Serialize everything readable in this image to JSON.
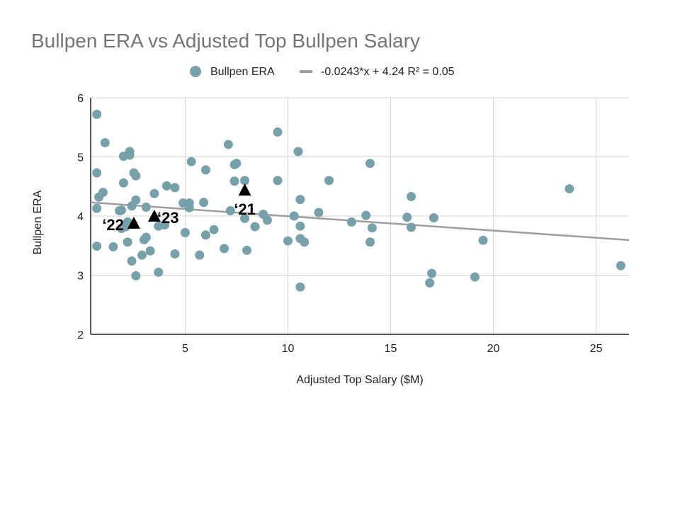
{
  "chart_data": {
    "type": "scatter",
    "title": "Bullpen ERA vs Adjusted Top Bullpen Salary",
    "xlabel": "Adjusted Top Salary ($M)",
    "ylabel": "Bullpen ERA",
    "xlim": [
      0.4,
      26.6
    ],
    "ylim": [
      2,
      6
    ],
    "xticks": [
      5,
      10,
      15,
      20,
      25
    ],
    "yticks": [
      2,
      3,
      4,
      5,
      6
    ],
    "grid": true,
    "legend_position": "top",
    "colors": {
      "point": "#77a1aa",
      "trend": "#9e9e9e",
      "grid": "#d4d4d4",
      "axis": "#222222",
      "marker": "#000000"
    },
    "legend": [
      {
        "label": "Bullpen ERA",
        "kind": "point"
      },
      {
        "label": "-0.0243*x + 4.24 R² = 0.05",
        "kind": "trendline"
      }
    ],
    "trendline": {
      "slope": -0.0243,
      "intercept": 4.24,
      "r2": 0.05
    },
    "points": [
      [
        0.7,
        5.72
      ],
      [
        1.1,
        5.24
      ],
      [
        0.7,
        4.73
      ],
      [
        1.0,
        4.4
      ],
      [
        0.8,
        4.32
      ],
      [
        0.7,
        4.13
      ],
      [
        0.7,
        3.49
      ],
      [
        1.5,
        3.48
      ],
      [
        1.9,
        4.1
      ],
      [
        1.8,
        4.09
      ],
      [
        2.0,
        4.56
      ],
      [
        2.0,
        5.01
      ],
      [
        2.3,
        5.09
      ],
      [
        2.3,
        5.03
      ],
      [
        2.5,
        4.73
      ],
      [
        2.6,
        4.68
      ],
      [
        2.6,
        4.27
      ],
      [
        2.4,
        4.17
      ],
      [
        2.1,
        3.82
      ],
      [
        2.2,
        3.9
      ],
      [
        1.9,
        3.79
      ],
      [
        2.2,
        3.56
      ],
      [
        2.4,
        3.24
      ],
      [
        2.6,
        2.99
      ],
      [
        2.9,
        3.34
      ],
      [
        3.0,
        3.6
      ],
      [
        3.1,
        4.15
      ],
      [
        3.1,
        3.64
      ],
      [
        3.3,
        3.41
      ],
      [
        3.5,
        4.38
      ],
      [
        3.7,
        3.83
      ],
      [
        3.7,
        3.05
      ],
      [
        4.0,
        3.85
      ],
      [
        4.1,
        4.51
      ],
      [
        4.5,
        4.48
      ],
      [
        4.5,
        3.36
      ],
      [
        4.9,
        4.22
      ],
      [
        5.0,
        3.72
      ],
      [
        5.2,
        4.22
      ],
      [
        5.2,
        4.14
      ],
      [
        5.3,
        4.92
      ],
      [
        5.7,
        3.34
      ],
      [
        5.9,
        4.23
      ],
      [
        6.0,
        4.78
      ],
      [
        6.0,
        3.68
      ],
      [
        6.4,
        3.77
      ],
      [
        6.9,
        3.45
      ],
      [
        7.1,
        5.21
      ],
      [
        7.2,
        4.09
      ],
      [
        7.4,
        4.87
      ],
      [
        7.5,
        4.89
      ],
      [
        7.4,
        4.59
      ],
      [
        7.9,
        4.6
      ],
      [
        7.9,
        3.96
      ],
      [
        8.0,
        3.42
      ],
      [
        8.4,
        3.82
      ],
      [
        8.8,
        4.03
      ],
      [
        9.0,
        3.93
      ],
      [
        9.5,
        5.42
      ],
      [
        9.5,
        4.6
      ],
      [
        10.0,
        3.58
      ],
      [
        10.3,
        4.0
      ],
      [
        10.5,
        5.09
      ],
      [
        10.6,
        4.28
      ],
      [
        10.6,
        3.83
      ],
      [
        10.6,
        3.62
      ],
      [
        10.6,
        2.8
      ],
      [
        10.8,
        3.56
      ],
      [
        11.5,
        4.06
      ],
      [
        12.0,
        4.6
      ],
      [
        13.1,
        3.9
      ],
      [
        13.8,
        4.01
      ],
      [
        14.0,
        4.89
      ],
      [
        14.0,
        3.56
      ],
      [
        14.1,
        3.8
      ],
      [
        15.8,
        3.98
      ],
      [
        16.0,
        4.33
      ],
      [
        16.0,
        3.81
      ],
      [
        17.0,
        3.03
      ],
      [
        16.9,
        2.87
      ],
      [
        17.1,
        3.97
      ],
      [
        19.1,
        2.97
      ],
      [
        19.5,
        3.59
      ],
      [
        23.7,
        4.46
      ],
      [
        26.2,
        3.16
      ]
    ],
    "annotations": [
      {
        "label": "‘21",
        "x": 7.9,
        "y": 4.43
      },
      {
        "label": "‘22",
        "x": 2.5,
        "y": 3.87
      },
      {
        "label": "‘23",
        "x": 3.5,
        "y": 3.99
      }
    ]
  }
}
